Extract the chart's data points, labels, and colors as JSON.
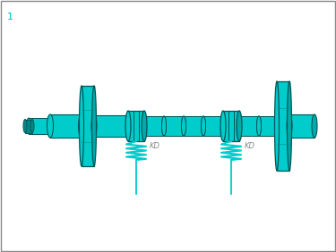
{
  "bg_color": "#ffffff",
  "border_color": "#888888",
  "cyan": "#00CCCC",
  "cyan_mid": "#00AAAA",
  "cyan_dark": "#008888",
  "cyan_edge": "#005555",
  "label_color": "#888888",
  "number_color": "#00BBBB",
  "fig_number": "1",
  "label_k1": "KD",
  "label_k2": "KD",
  "figsize": [
    3.75,
    2.82
  ],
  "dpi": 100
}
